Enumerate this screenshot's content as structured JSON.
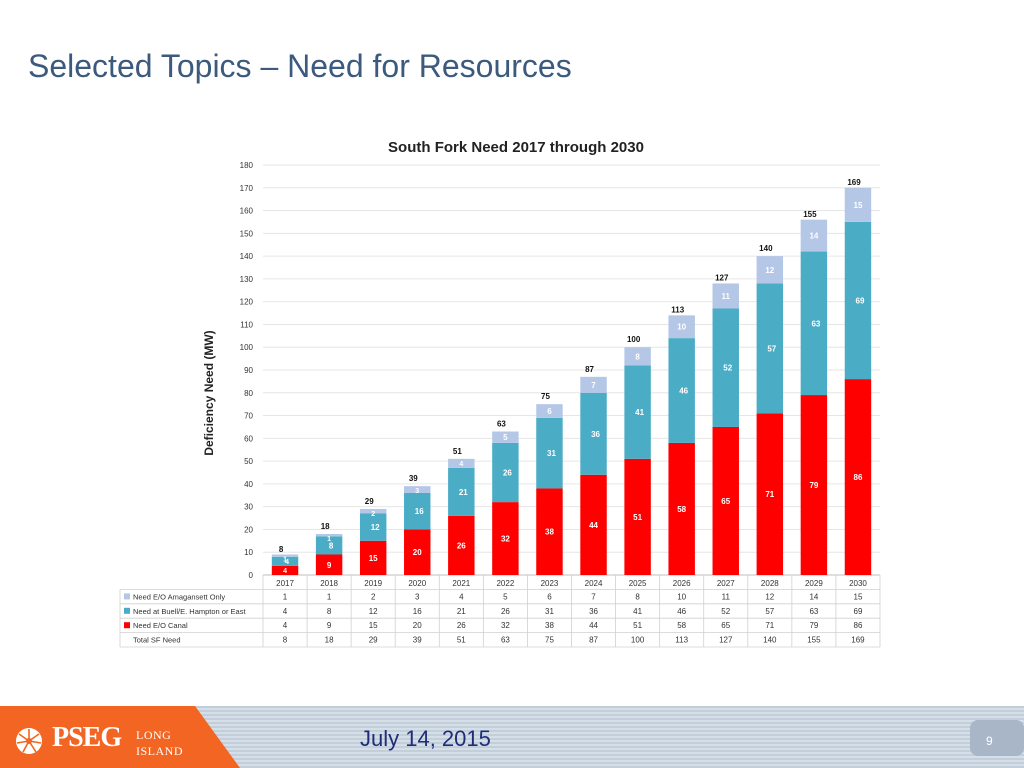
{
  "slide": {
    "title": "Selected Topics – Need for Resources",
    "date": "July 14, 2015",
    "page_number": "9",
    "logo": {
      "word": "PSEG",
      "sub1": "LONG",
      "sub2": "ISLAND"
    }
  },
  "colors": {
    "amagansett": "#b4c7e7",
    "buell": "#4bacc6",
    "canal": "#ff0000",
    "title": "#3b5a7e",
    "date": "#1f2d78",
    "logo_orange": "#f26522"
  },
  "chart_data": {
    "type": "bar",
    "stacked": true,
    "title": "South Fork Need 2017 through 2030",
    "ylabel": "Deficiency Need (MW)",
    "xlabel": "",
    "ylim": [
      0,
      180
    ],
    "yticks": [
      0,
      10,
      20,
      30,
      40,
      50,
      60,
      70,
      80,
      90,
      100,
      110,
      120,
      130,
      140,
      150,
      160,
      170,
      180
    ],
    "grid": true,
    "legend": "data-table-left",
    "categories": [
      "2017",
      "2018",
      "2019",
      "2020",
      "2021",
      "2022",
      "2023",
      "2024",
      "2025",
      "2026",
      "2027",
      "2028",
      "2029",
      "2030"
    ],
    "series": [
      {
        "name": "Need E/O Amagansett Only",
        "values": [
          1,
          1,
          2,
          3,
          4,
          5,
          6,
          7,
          8,
          10,
          11,
          12,
          14,
          15
        ]
      },
      {
        "name": "Need at Buell/E. Hampton or East",
        "values": [
          4,
          8,
          12,
          16,
          21,
          26,
          31,
          36,
          41,
          46,
          52,
          57,
          63,
          69
        ]
      },
      {
        "name": "Need E/O Canal",
        "values": [
          4,
          9,
          15,
          20,
          26,
          32,
          38,
          44,
          51,
          58,
          65,
          71,
          79,
          86
        ]
      }
    ],
    "total": {
      "name": "Total SF Need",
      "values": [
        8,
        18,
        29,
        39,
        51,
        63,
        75,
        87,
        100,
        113,
        127,
        140,
        155,
        169
      ]
    }
  }
}
